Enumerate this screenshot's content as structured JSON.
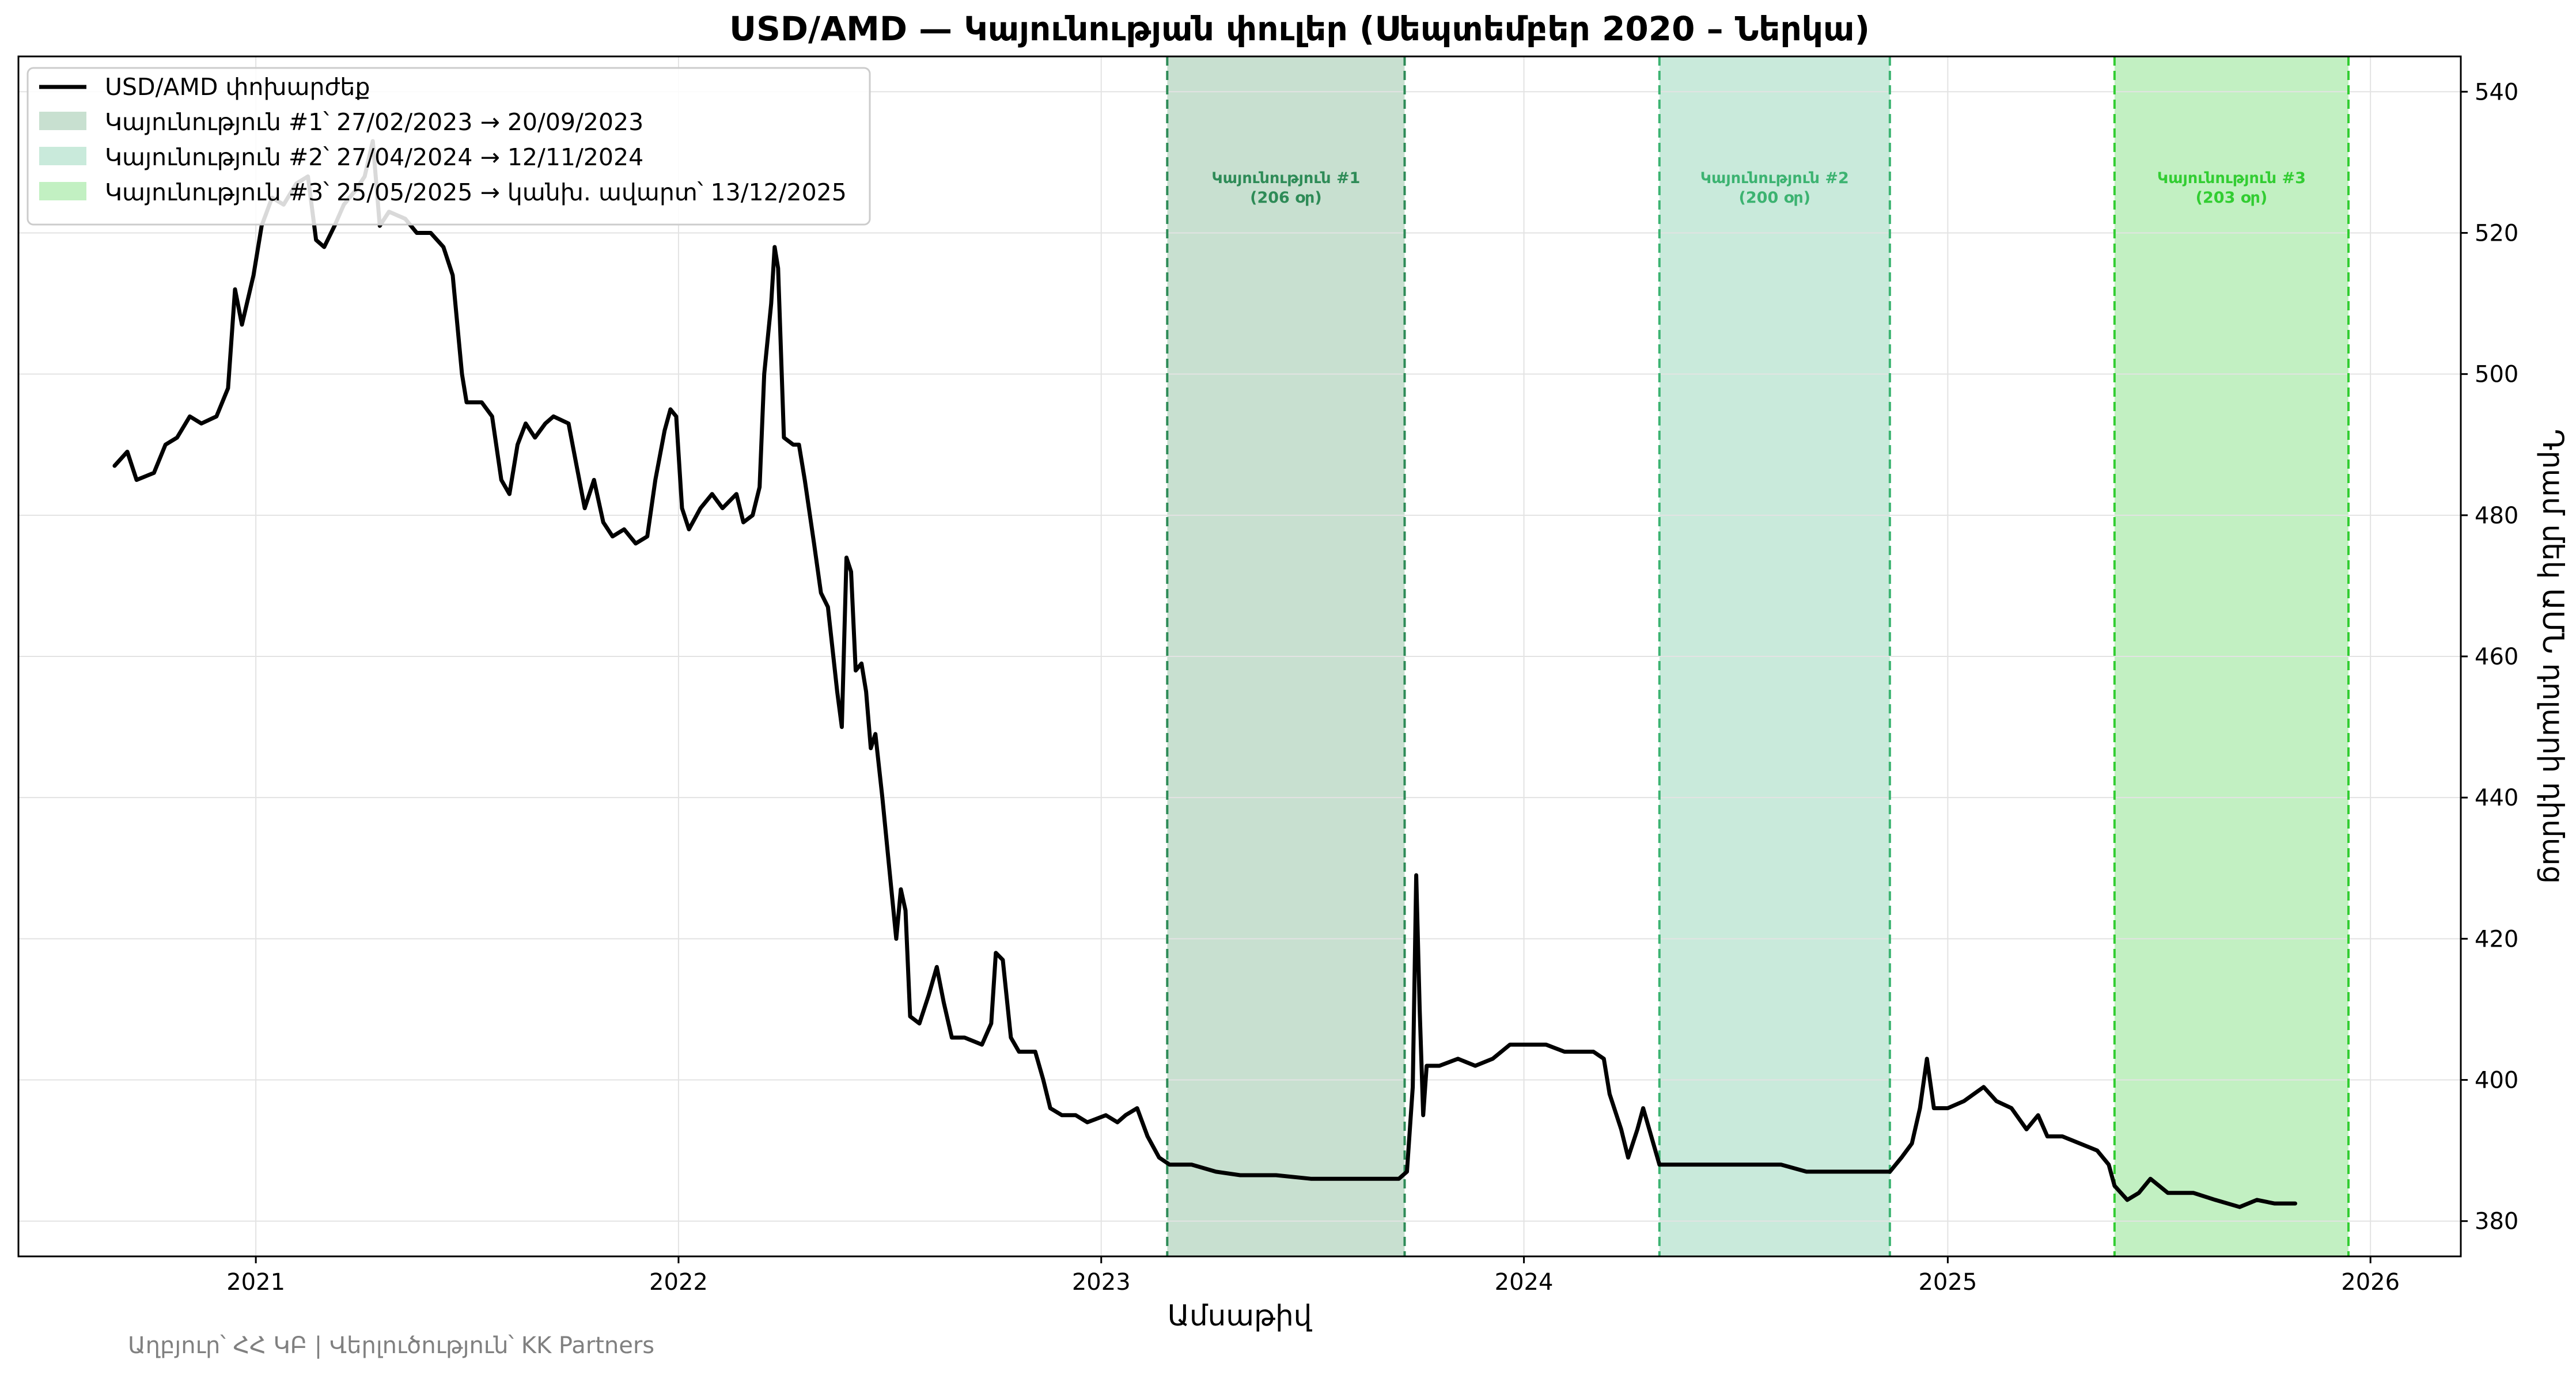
{
  "chart_data": {
    "type": "line",
    "title": "USD/AMD — Կայունության փուլեր (Սեպտեմբեր 2020 – Ներկա)",
    "xlabel": "Ամսաթիվ",
    "ylabel": "Դրամ մեկ ԱՄՆ դոլարի դիմաց",
    "y_axis_side": "right",
    "ylim": [
      375,
      545
    ],
    "xlim": [
      "2020-06-10",
      "2026-03-20"
    ],
    "x_ticks": [
      "2021",
      "2022",
      "2023",
      "2024",
      "2025",
      "2026"
    ],
    "y_ticks": [
      380,
      400,
      420,
      440,
      460,
      480,
      500,
      520,
      540
    ],
    "grid": true,
    "legend_position": "top-left",
    "source_note": "Աղբյուր՝ ՀՀ ԿԲ | Վերլուծություն՝ KK Partners",
    "series": [
      {
        "name": "USD/AMD փոխարժեք",
        "color": "#000000",
        "points": [
          [
            "2020-09-01",
            487
          ],
          [
            "2020-09-12",
            489
          ],
          [
            "2020-09-20",
            485
          ],
          [
            "2020-10-05",
            486
          ],
          [
            "2020-10-15",
            490
          ],
          [
            "2020-10-25",
            491
          ],
          [
            "2020-11-05",
            494
          ],
          [
            "2020-11-15",
            493
          ],
          [
            "2020-11-28",
            494
          ],
          [
            "2020-12-08",
            498
          ],
          [
            "2020-12-14",
            512
          ],
          [
            "2020-12-20",
            507
          ],
          [
            "2020-12-30",
            514
          ],
          [
            "2021-01-06",
            521
          ],
          [
            "2021-01-15",
            525
          ],
          [
            "2021-01-25",
            524
          ],
          [
            "2021-02-05",
            527
          ],
          [
            "2021-02-15",
            528
          ],
          [
            "2021-02-22",
            519
          ],
          [
            "2021-03-01",
            518
          ],
          [
            "2021-03-10",
            521
          ],
          [
            "2021-03-18",
            524
          ],
          [
            "2021-03-28",
            526
          ],
          [
            "2021-04-05",
            528
          ],
          [
            "2021-04-12",
            533
          ],
          [
            "2021-04-18",
            521
          ],
          [
            "2021-04-26",
            523
          ],
          [
            "2021-05-10",
            522
          ],
          [
            "2021-05-20",
            520
          ],
          [
            "2021-06-01",
            520
          ],
          [
            "2021-06-12",
            518
          ],
          [
            "2021-06-20",
            514
          ],
          [
            "2021-06-28",
            500
          ],
          [
            "2021-07-02",
            496
          ],
          [
            "2021-07-15",
            496
          ],
          [
            "2021-07-24",
            494
          ],
          [
            "2021-08-01",
            485
          ],
          [
            "2021-08-08",
            483
          ],
          [
            "2021-08-15",
            490
          ],
          [
            "2021-08-22",
            493
          ],
          [
            "2021-08-30",
            491
          ],
          [
            "2021-09-08",
            493
          ],
          [
            "2021-09-15",
            494
          ],
          [
            "2021-09-28",
            493
          ],
          [
            "2021-10-05",
            487
          ],
          [
            "2021-10-12",
            481
          ],
          [
            "2021-10-20",
            485
          ],
          [
            "2021-10-28",
            479
          ],
          [
            "2021-11-05",
            477
          ],
          [
            "2021-11-15",
            478
          ],
          [
            "2021-11-25",
            476
          ],
          [
            "2021-12-05",
            477
          ],
          [
            "2021-12-12",
            485
          ],
          [
            "2021-12-20",
            492
          ],
          [
            "2021-12-25",
            495
          ],
          [
            "2021-12-30",
            494
          ],
          [
            "2022-01-04",
            481
          ],
          [
            "2022-01-10",
            478
          ],
          [
            "2022-01-20",
            481
          ],
          [
            "2022-01-30",
            483
          ],
          [
            "2022-02-08",
            481
          ],
          [
            "2022-02-20",
            483
          ],
          [
            "2022-02-26",
            479
          ],
          [
            "2022-03-06",
            480
          ],
          [
            "2022-03-12",
            484
          ],
          [
            "2022-03-16",
            500
          ],
          [
            "2022-03-22",
            510
          ],
          [
            "2022-03-25",
            518
          ],
          [
            "2022-03-28",
            515
          ],
          [
            "2022-04-02",
            491
          ],
          [
            "2022-04-10",
            490
          ],
          [
            "2022-04-15",
            490
          ],
          [
            "2022-04-20",
            485
          ],
          [
            "2022-04-28",
            476
          ],
          [
            "2022-05-04",
            469
          ],
          [
            "2022-05-10",
            467
          ],
          [
            "2022-05-18",
            455
          ],
          [
            "2022-05-22",
            450
          ],
          [
            "2022-05-26",
            474
          ],
          [
            "2022-05-30",
            472
          ],
          [
            "2022-06-03",
            458
          ],
          [
            "2022-06-08",
            459
          ],
          [
            "2022-06-12",
            455
          ],
          [
            "2022-06-16",
            447
          ],
          [
            "2022-06-20",
            449
          ],
          [
            "2022-06-26",
            440
          ],
          [
            "2022-07-02",
            430
          ],
          [
            "2022-07-08",
            420
          ],
          [
            "2022-07-12",
            427
          ],
          [
            "2022-07-16",
            424
          ],
          [
            "2022-07-20",
            409
          ],
          [
            "2022-07-28",
            408
          ],
          [
            "2022-08-05",
            412
          ],
          [
            "2022-08-12",
            416
          ],
          [
            "2022-08-18",
            411
          ],
          [
            "2022-08-25",
            406
          ],
          [
            "2022-09-05",
            406
          ],
          [
            "2022-09-20",
            405
          ],
          [
            "2022-09-28",
            408
          ],
          [
            "2022-10-02",
            418
          ],
          [
            "2022-10-08",
            417
          ],
          [
            "2022-10-15",
            406
          ],
          [
            "2022-10-22",
            404
          ],
          [
            "2022-11-05",
            404
          ],
          [
            "2022-11-12",
            400
          ],
          [
            "2022-11-18",
            396
          ],
          [
            "2022-11-28",
            395
          ],
          [
            "2022-12-10",
            395
          ],
          [
            "2022-12-20",
            394
          ],
          [
            "2023-01-05",
            395
          ],
          [
            "2023-01-15",
            394
          ],
          [
            "2023-01-22",
            395
          ],
          [
            "2023-02-01",
            396
          ],
          [
            "2023-02-10",
            392
          ],
          [
            "2023-02-20",
            389
          ],
          [
            "2023-03-01",
            388
          ],
          [
            "2023-03-20",
            388
          ],
          [
            "2023-04-10",
            387
          ],
          [
            "2023-05-01",
            386.5
          ],
          [
            "2023-06-01",
            386.5
          ],
          [
            "2023-07-01",
            386
          ],
          [
            "2023-08-01",
            386
          ],
          [
            "2023-09-01",
            386
          ],
          [
            "2023-09-15",
            386
          ],
          [
            "2023-09-22",
            387
          ],
          [
            "2023-09-27",
            399
          ],
          [
            "2023-09-30",
            429
          ],
          [
            "2023-10-03",
            410
          ],
          [
            "2023-10-06",
            395
          ],
          [
            "2023-10-09",
            402
          ],
          [
            "2023-10-20",
            402
          ],
          [
            "2023-11-05",
            403
          ],
          [
            "2023-11-20",
            402
          ],
          [
            "2023-12-05",
            403
          ],
          [
            "2023-12-20",
            405
          ],
          [
            "2024-01-05",
            405
          ],
          [
            "2024-01-20",
            405
          ],
          [
            "2024-02-05",
            404
          ],
          [
            "2024-02-20",
            404
          ],
          [
            "2024-03-01",
            404
          ],
          [
            "2024-03-10",
            403
          ],
          [
            "2024-03-15",
            398
          ],
          [
            "2024-03-25",
            393
          ],
          [
            "2024-03-31",
            389
          ],
          [
            "2024-04-08",
            393
          ],
          [
            "2024-04-13",
            396
          ],
          [
            "2024-04-20",
            392
          ],
          [
            "2024-04-27",
            388
          ],
          [
            "2024-05-15",
            388
          ],
          [
            "2024-06-10",
            388
          ],
          [
            "2024-07-10",
            388
          ],
          [
            "2024-08-10",
            388
          ],
          [
            "2024-09-01",
            387
          ],
          [
            "2024-10-01",
            387
          ],
          [
            "2024-10-20",
            387
          ],
          [
            "2024-11-12",
            387
          ],
          [
            "2024-11-22",
            389
          ],
          [
            "2024-12-01",
            391
          ],
          [
            "2024-12-08",
            396
          ],
          [
            "2024-12-14",
            403
          ],
          [
            "2024-12-20",
            396
          ],
          [
            "2025-01-01",
            396
          ],
          [
            "2025-01-15",
            397
          ],
          [
            "2025-02-01",
            399
          ],
          [
            "2025-02-12",
            397
          ],
          [
            "2025-02-25",
            396
          ],
          [
            "2025-03-10",
            393
          ],
          [
            "2025-03-20",
            395
          ],
          [
            "2025-03-28",
            392
          ],
          [
            "2025-04-10",
            392
          ],
          [
            "2025-04-25",
            391
          ],
          [
            "2025-05-10",
            390
          ],
          [
            "2025-05-20",
            388
          ],
          [
            "2025-05-25",
            385
          ],
          [
            "2025-06-05",
            383
          ],
          [
            "2025-06-15",
            384
          ],
          [
            "2025-06-25",
            386
          ],
          [
            "2025-07-10",
            384
          ],
          [
            "2025-08-01",
            384
          ],
          [
            "2025-08-20",
            383
          ],
          [
            "2025-09-10",
            382
          ],
          [
            "2025-09-25",
            383
          ],
          [
            "2025-10-10",
            382.5
          ],
          [
            "2025-10-28",
            382.5
          ]
        ]
      }
    ],
    "bands": [
      {
        "start": "2023-02-27",
        "end": "2023-09-20",
        "fill": "#c8e0d0",
        "line": "#2e8b57",
        "label": "Կայունություն #1",
        "days_label": "(206 օր)",
        "legend": "Կայունություն #1՝ 27/02/2023 → 20/09/2023"
      },
      {
        "start": "2024-04-27",
        "end": "2024-11-12",
        "fill": "#c9eadb",
        "line": "#3cb371",
        "label": "Կայունություն #2",
        "days_label": "(200 օր)",
        "legend": "Կայունություն #2՝ 27/04/2024 → 12/11/2024"
      },
      {
        "start": "2025-05-25",
        "end": "2025-12-13",
        "fill": "#c2f0c2",
        "line": "#32cd32",
        "label": "Կայունություն #3",
        "days_label": "(203 օր)",
        "legend": "Կայունություն #3՝ 25/05/2025 → կանխ. ավարտ՝ 13/12/2025"
      }
    ]
  }
}
